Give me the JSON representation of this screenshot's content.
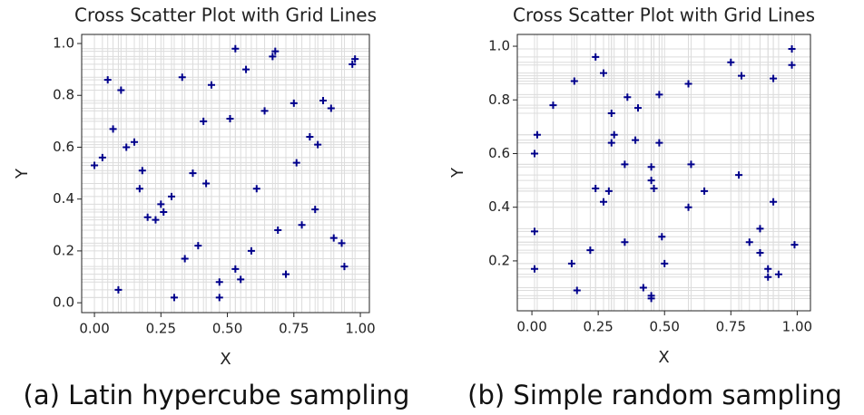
{
  "chart_data": [
    {
      "type": "scatter",
      "title": "Cross Scatter Plot with Grid Lines",
      "xlabel": "X",
      "ylabel": "Y",
      "caption": "(a) Latin hypercube sampling",
      "color": "#00008b",
      "grid": true,
      "x": [
        0.0,
        0.03,
        0.05,
        0.07,
        0.1,
        0.09,
        0.12,
        0.15,
        0.17,
        0.18,
        0.2,
        0.23,
        0.25,
        0.26,
        0.29,
        0.3,
        0.33,
        0.34,
        0.37,
        0.39,
        0.41,
        0.42,
        0.44,
        0.47,
        0.47,
        0.51,
        0.53,
        0.53,
        0.55,
        0.57,
        0.59,
        0.61,
        0.64,
        0.67,
        0.68,
        0.69,
        0.72,
        0.75,
        0.76,
        0.78,
        0.81,
        0.83,
        0.84,
        0.86,
        0.89,
        0.9,
        0.93,
        0.94,
        0.97,
        0.98
      ],
      "y": [
        0.53,
        0.56,
        0.86,
        0.67,
        0.82,
        0.05,
        0.6,
        0.62,
        0.44,
        0.51,
        0.33,
        0.32,
        0.38,
        0.35,
        0.41,
        0.02,
        0.87,
        0.17,
        0.5,
        0.22,
        0.7,
        0.46,
        0.84,
        0.08,
        0.02,
        0.71,
        0.98,
        0.13,
        0.09,
        0.9,
        0.2,
        0.44,
        0.74,
        0.95,
        0.97,
        0.28,
        0.11,
        0.77,
        0.54,
        0.3,
        0.64,
        0.36,
        0.61,
        0.78,
        0.75,
        0.25,
        0.23,
        0.14,
        0.92,
        0.94
      ],
      "xlim": [
        -0.048,
        1.034
      ],
      "ylim": [
        -0.038,
        1.035
      ],
      "xticks": [
        {
          "value": 0,
          "label": "0.00"
        },
        {
          "value": 0.25,
          "label": "0.25"
        },
        {
          "value": 0.5,
          "label": "0.50"
        },
        {
          "value": 0.75,
          "label": "0.75"
        },
        {
          "value": 1,
          "label": "1.00"
        }
      ],
      "yticks": [
        {
          "value": 0,
          "label": "0.0"
        },
        {
          "value": 0.2,
          "label": "0.2"
        },
        {
          "value": 0.4,
          "label": "0.4"
        },
        {
          "value": 0.6,
          "label": "0.6"
        },
        {
          "value": 0.8,
          "label": "0.8"
        },
        {
          "value": 1,
          "label": "1.0"
        }
      ]
    },
    {
      "type": "scatter",
      "title": "Cross Scatter Plot with Grid Lines",
      "xlabel": "X",
      "ylabel": "Y",
      "caption": "(b) Simple random sampling",
      "color": "#00008b",
      "grid": true,
      "x": [
        0.01,
        0.01,
        0.01,
        0.02,
        0.08,
        0.15,
        0.16,
        0.17,
        0.22,
        0.24,
        0.24,
        0.27,
        0.27,
        0.29,
        0.3,
        0.3,
        0.31,
        0.36,
        0.35,
        0.35,
        0.4,
        0.39,
        0.42,
        0.45,
        0.45,
        0.45,
        0.45,
        0.46,
        0.48,
        0.48,
        0.49,
        0.5,
        0.59,
        0.59,
        0.6,
        0.65,
        0.75,
        0.78,
        0.79,
        0.82,
        0.86,
        0.86,
        0.89,
        0.89,
        0.91,
        0.91,
        0.93,
        0.98,
        0.98,
        0.99
      ],
      "y": [
        0.6,
        0.31,
        0.17,
        0.67,
        0.78,
        0.19,
        0.87,
        0.09,
        0.24,
        0.47,
        0.96,
        0.9,
        0.42,
        0.46,
        0.75,
        0.64,
        0.67,
        0.81,
        0.56,
        0.27,
        0.77,
        0.65,
        0.1,
        0.06,
        0.07,
        0.55,
        0.5,
        0.47,
        0.82,
        0.64,
        0.29,
        0.19,
        0.86,
        0.4,
        0.56,
        0.46,
        0.94,
        0.52,
        0.89,
        0.27,
        0.32,
        0.23,
        0.17,
        0.14,
        0.88,
        0.42,
        0.15,
        0.99,
        0.93,
        0.26
      ],
      "xlim": [
        -0.055,
        1.05
      ],
      "ylim": [
        0.014,
        1.044
      ],
      "xticks": [
        {
          "value": 0,
          "label": "0.00"
        },
        {
          "value": 0.25,
          "label": "0.25"
        },
        {
          "value": 0.5,
          "label": "0.50"
        },
        {
          "value": 0.75,
          "label": "0.75"
        },
        {
          "value": 1,
          "label": "1.00"
        }
      ],
      "yticks": [
        {
          "value": 0.2,
          "label": "0.2"
        },
        {
          "value": 0.4,
          "label": "0.4"
        },
        {
          "value": 0.6,
          "label": "0.6"
        },
        {
          "value": 0.8,
          "label": "0.8"
        },
        {
          "value": 1,
          "label": "1.0"
        }
      ]
    }
  ]
}
